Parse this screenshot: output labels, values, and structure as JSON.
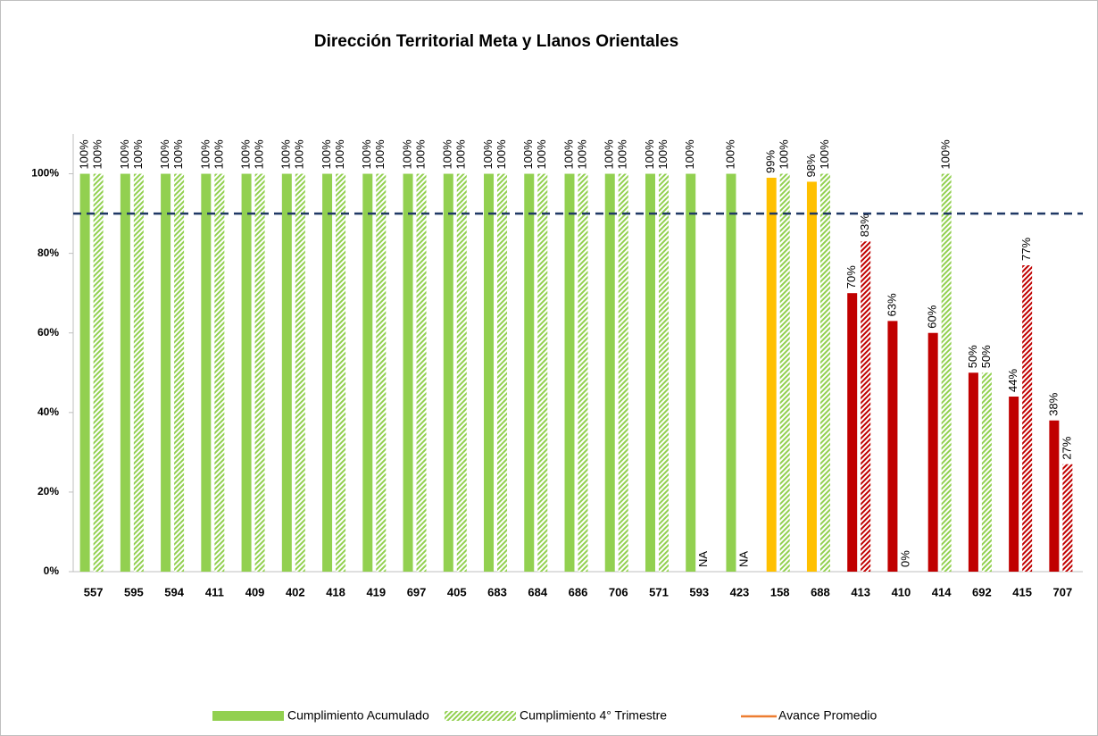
{
  "chart_data": {
    "type": "bar",
    "title": "Dirección Territorial Meta y Llanos Orientales",
    "categories": [
      "557",
      "595",
      "594",
      "411",
      "409",
      "402",
      "418",
      "419",
      "697",
      "405",
      "683",
      "684",
      "686",
      "706",
      "571",
      "593",
      "423",
      "158",
      "688",
      "413",
      "410",
      "414",
      "692",
      "415",
      "707"
    ],
    "series": [
      {
        "name": "Cumplimiento Acumulado",
        "pattern": "solid",
        "color": "#92d050",
        "colors": [
          "#92d050",
          "#92d050",
          "#92d050",
          "#92d050",
          "#92d050",
          "#92d050",
          "#92d050",
          "#92d050",
          "#92d050",
          "#92d050",
          "#92d050",
          "#92d050",
          "#92d050",
          "#92d050",
          "#92d050",
          "#92d050",
          "#92d050",
          "#ffc000",
          "#ffc000",
          "#c00000",
          "#c00000",
          "#c00000",
          "#c00000",
          "#c00000",
          "#c00000"
        ],
        "values": [
          100,
          100,
          100,
          100,
          100,
          100,
          100,
          100,
          100,
          100,
          100,
          100,
          100,
          100,
          100,
          100,
          100,
          99,
          98,
          70,
          63,
          60,
          50,
          44,
          38
        ],
        "value_labels": [
          "100%",
          "100%",
          "100%",
          "100%",
          "100%",
          "100%",
          "100%",
          "100%",
          "100%",
          "100%",
          "100%",
          "100%",
          "100%",
          "100%",
          "100%",
          "100%",
          "100%",
          "99%",
          "98%",
          "70%",
          "63%",
          "60%",
          "50%",
          "44%",
          "38%"
        ]
      },
      {
        "name": "Cumplimiento 4° Trimestre",
        "pattern": "hatch",
        "color": "#92d050",
        "colors": [
          "#92d050",
          "#92d050",
          "#92d050",
          "#92d050",
          "#92d050",
          "#92d050",
          "#92d050",
          "#92d050",
          "#92d050",
          "#92d050",
          "#92d050",
          "#92d050",
          "#92d050",
          "#92d050",
          "#92d050",
          "#92d050",
          "#92d050",
          "#92d050",
          "#92d050",
          "#c00000",
          "#c00000",
          "#92d050",
          "#92d050",
          "#c00000",
          "#c00000"
        ],
        "values": [
          100,
          100,
          100,
          100,
          100,
          100,
          100,
          100,
          100,
          100,
          100,
          100,
          100,
          100,
          100,
          null,
          null,
          100,
          100,
          83,
          0,
          100,
          50,
          77,
          27
        ],
        "value_labels": [
          "100%",
          "100%",
          "100%",
          "100%",
          "100%",
          "100%",
          "100%",
          "100%",
          "100%",
          "100%",
          "100%",
          "100%",
          "100%",
          "100%",
          "100%",
          "NA",
          "NA",
          "100%",
          "100%",
          "83%",
          "0%",
          "100%",
          "50%",
          "77%",
          "27%"
        ]
      }
    ],
    "legend_line": {
      "name": "Avance Promedio",
      "color": "#ed7d31"
    },
    "target_line": {
      "value": 90,
      "color": "#1f3864"
    },
    "ylim": [
      0,
      110
    ],
    "yticks": [
      {
        "value": 0,
        "label": "0%"
      },
      {
        "value": 20,
        "label": "20%"
      },
      {
        "value": 40,
        "label": "40%"
      },
      {
        "value": 60,
        "label": "60%"
      },
      {
        "value": 80,
        "label": "80%"
      },
      {
        "value": 100,
        "label": "100%"
      }
    ],
    "legend": "bottom"
  }
}
